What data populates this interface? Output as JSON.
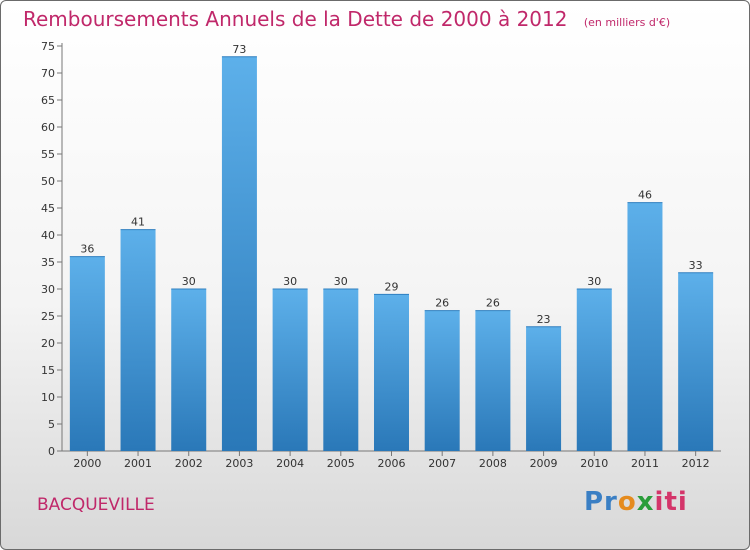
{
  "chart_data": {
    "type": "bar",
    "title": "Remboursements Annuels de la Dette de 2000 à 2012",
    "unit_note": "(en milliers d'€)",
    "categories": [
      "2000",
      "2001",
      "2002",
      "2003",
      "2004",
      "2005",
      "2006",
      "2007",
      "2008",
      "2009",
      "2010",
      "2011",
      "2012"
    ],
    "values": [
      36,
      41,
      30,
      73,
      30,
      30,
      29,
      26,
      26,
      23,
      30,
      46,
      33
    ],
    "ylim": [
      0,
      75
    ],
    "yticks": [
      0,
      5,
      10,
      15,
      20,
      25,
      30,
      35,
      40,
      45,
      50,
      55,
      60,
      65,
      70,
      75
    ],
    "grid": false,
    "bar_color": "#4a9de0"
  },
  "footer": {
    "location": "BACQUEVILLE",
    "brand": [
      "Pr",
      "o",
      "x",
      "iti"
    ]
  }
}
